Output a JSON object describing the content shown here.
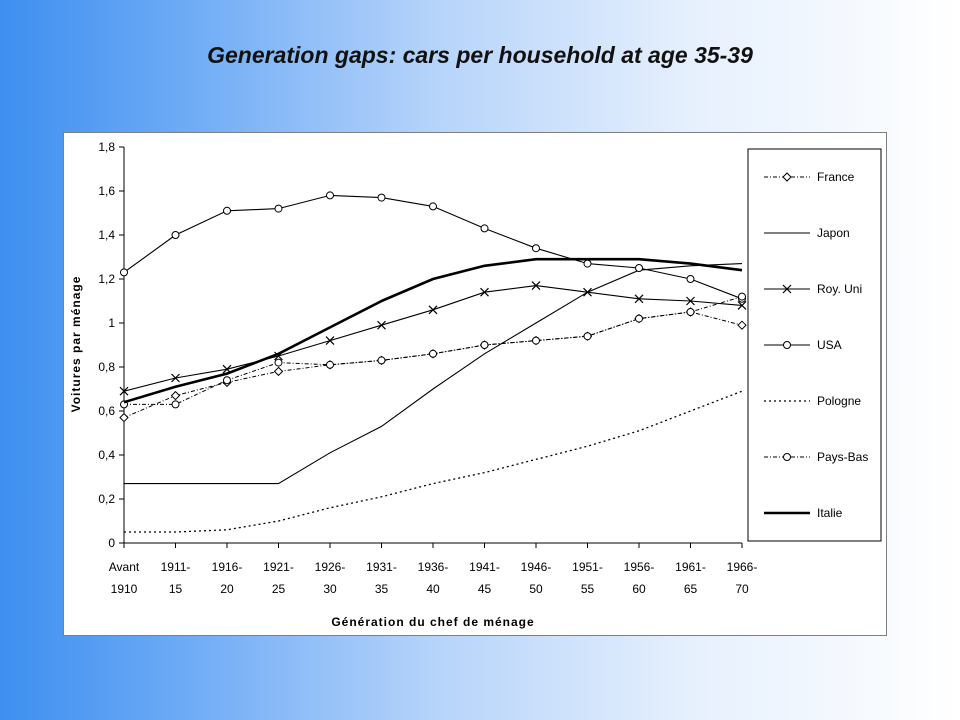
{
  "slide": {
    "title": "Generation gaps: cars per household at age 35-39"
  },
  "chart_data": {
    "type": "line",
    "title": "",
    "xlabel": "Génération du chef de ménage",
    "ylabel": "Voitures par ménage",
    "categories": [
      [
        "Avant",
        "1910"
      ],
      [
        "1911-",
        "15"
      ],
      [
        "1916-",
        "20"
      ],
      [
        "1921-",
        "25"
      ],
      [
        "1926-",
        "30"
      ],
      [
        "1931-",
        "35"
      ],
      [
        "1936-",
        "40"
      ],
      [
        "1941-",
        "45"
      ],
      [
        "1946-",
        "50"
      ],
      [
        "1951-",
        "55"
      ],
      [
        "1956-",
        "60"
      ],
      [
        "1961-",
        "65"
      ],
      [
        "1966-",
        "70"
      ]
    ],
    "ylim": [
      0,
      1.8
    ],
    "yticks": [
      "0",
      "0,2",
      "0,4",
      "0,6",
      "0,8",
      "1",
      "1,2",
      "1,4",
      "1,6",
      "1,8"
    ],
    "grid": false,
    "legend_position": "right",
    "series": [
      {
        "name": "France",
        "color": "#000000",
        "style": "dashdot",
        "marker": "diamond",
        "values": [
          0.57,
          0.67,
          0.73,
          0.78,
          0.81,
          0.83,
          0.86,
          0.9,
          0.92,
          0.94,
          1.02,
          1.05,
          0.99
        ]
      },
      {
        "name": "Japon",
        "color": "#000000",
        "style": "solid",
        "marker": "none",
        "values": [
          0.27,
          0.27,
          0.27,
          0.27,
          0.41,
          0.53,
          0.7,
          0.86,
          1.0,
          1.14,
          1.24,
          1.26,
          1.27
        ]
      },
      {
        "name": "Roy. Uni",
        "color": "#000000",
        "style": "solid",
        "marker": "x",
        "values": [
          0.69,
          0.75,
          0.79,
          0.85,
          0.92,
          0.99,
          1.06,
          1.14,
          1.17,
          1.14,
          1.11,
          1.1,
          1.08
        ]
      },
      {
        "name": "USA",
        "color": "#000000",
        "style": "solid",
        "marker": "circle",
        "values": [
          1.23,
          1.4,
          1.51,
          1.52,
          1.58,
          1.57,
          1.53,
          1.43,
          1.34,
          1.27,
          1.25,
          1.2,
          1.11
        ]
      },
      {
        "name": "Pologne",
        "color": "#000000",
        "style": "dotted",
        "marker": "none",
        "values": [
          0.05,
          0.05,
          0.06,
          0.1,
          0.16,
          0.21,
          0.27,
          0.32,
          0.38,
          0.44,
          0.51,
          0.6,
          0.69
        ]
      },
      {
        "name": "Pays-Bas",
        "color": "#000000",
        "style": "dashdot",
        "marker": "circle",
        "values": [
          0.63,
          0.63,
          0.74,
          0.82,
          0.81,
          0.83,
          0.86,
          0.9,
          0.92,
          0.94,
          1.02,
          1.05,
          1.12
        ]
      },
      {
        "name": "Italie",
        "color": "#000000",
        "style": "bold",
        "marker": "none",
        "values": [
          0.64,
          0.71,
          0.77,
          0.86,
          0.98,
          1.1,
          1.2,
          1.26,
          1.29,
          1.29,
          1.29,
          1.27,
          1.24
        ]
      }
    ]
  }
}
